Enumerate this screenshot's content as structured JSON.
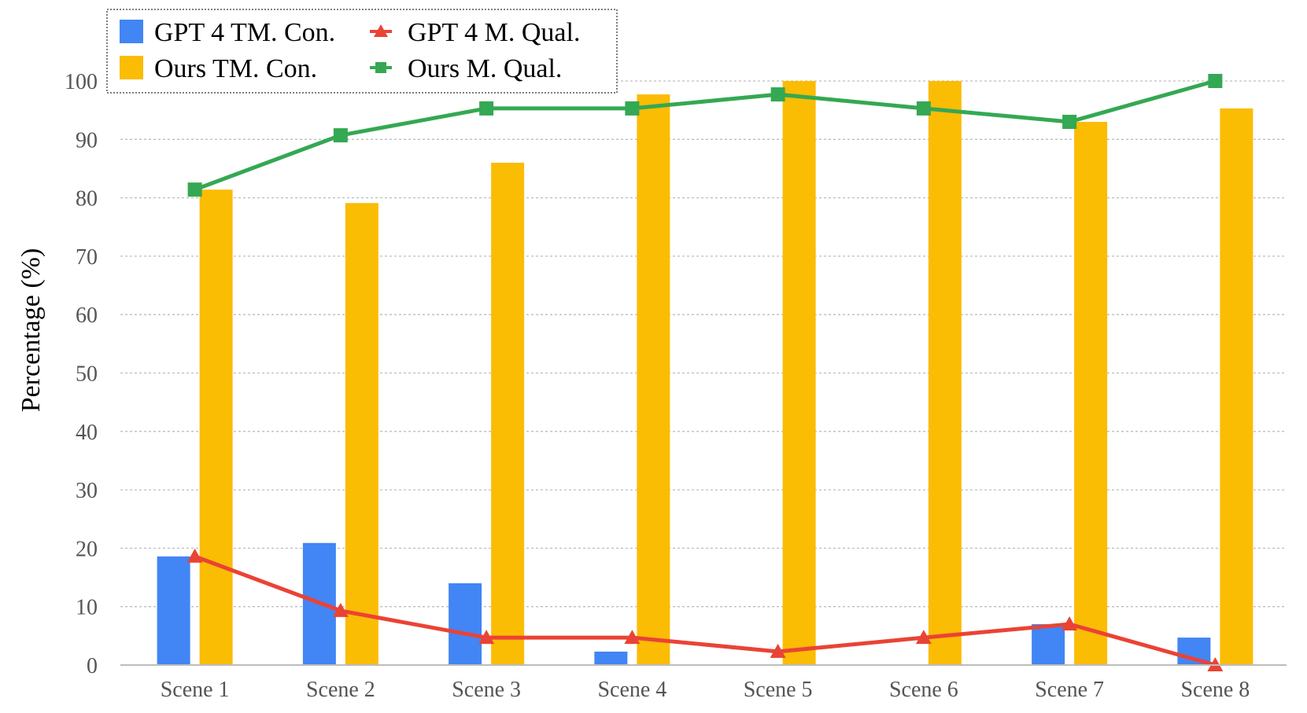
{
  "chart_data": {
    "type": "bar",
    "categories": [
      "Scene 1",
      "Scene 2",
      "Scene 3",
      "Scene 4",
      "Scene 5",
      "Scene 6",
      "Scene 7",
      "Scene 8"
    ],
    "ylabel": "Percentage (%)",
    "xlabel": "",
    "ylim": [
      0,
      100
    ],
    "yticks": [
      "0",
      "10",
      "20",
      "30",
      "40",
      "50",
      "60",
      "70",
      "80",
      "90",
      "100"
    ],
    "grid": true,
    "legend_position": "top-left",
    "bar_series": [
      {
        "name": "GPT 4 TM. Con.",
        "color": "#4285F4",
        "values": [
          18.6,
          20.9,
          14.0,
          2.3,
          0,
          0,
          7.0,
          4.7
        ]
      },
      {
        "name": "Ours TM. Con.",
        "color": "#FBBC04",
        "values": [
          81.4,
          79.1,
          86.0,
          97.7,
          100,
          100,
          93.0,
          95.3
        ]
      }
    ],
    "line_series": [
      {
        "name": "GPT 4 M. Qual.",
        "color": "#EA4335",
        "marker": "triangle",
        "values": [
          18.6,
          9.3,
          4.7,
          4.7,
          2.3,
          4.7,
          7.0,
          0
        ]
      },
      {
        "name": "Ours M. Qual.",
        "color": "#34A853",
        "marker": "square",
        "values": [
          81.4,
          90.7,
          95.3,
          95.3,
          97.7,
          95.3,
          93.0,
          100
        ]
      }
    ]
  }
}
